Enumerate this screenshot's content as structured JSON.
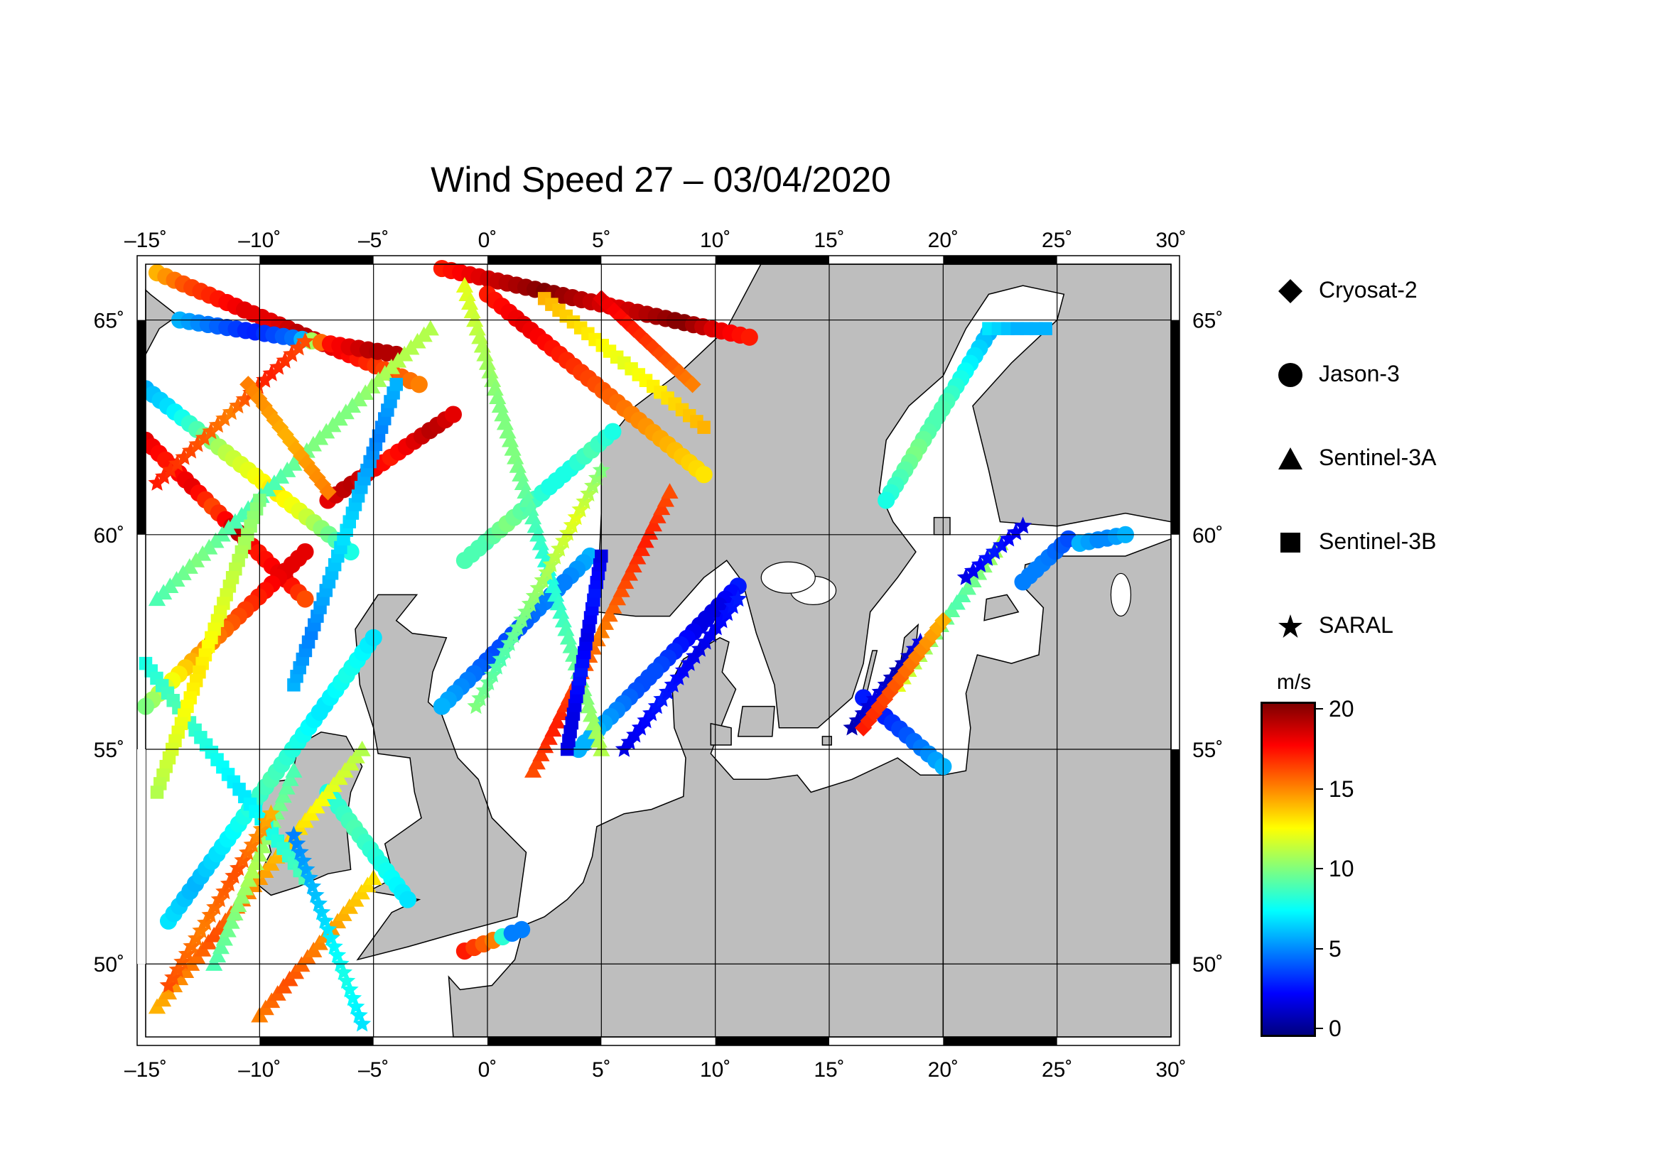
{
  "title": "Wind Speed 27 – 03/04/2020",
  "map": {
    "lon_range": [
      -15,
      30
    ],
    "lat_range": [
      48.3,
      66.3
    ],
    "lon_ticks": [
      "–15˚",
      "–10˚",
      "–5˚",
      "0˚",
      "5˚",
      "10˚",
      "15˚",
      "20˚",
      "25˚",
      "30˚"
    ],
    "lat_ticks": [
      "50˚",
      "55˚",
      "60˚",
      "65˚"
    ],
    "grid": true,
    "land_color": "#bebebe",
    "sea_color": "#ffffff",
    "frame_pattern": "alternating black/white 5-degree bands"
  },
  "legend": {
    "items": [
      {
        "label": "Cryosat-2",
        "symbol": "diamond"
      },
      {
        "label": "Jason-3",
        "symbol": "circle"
      },
      {
        "label": "Sentinel-3A",
        "symbol": "triangle"
      },
      {
        "label": "Sentinel-3B",
        "symbol": "square"
      },
      {
        "label": "SARAL",
        "symbol": "star"
      }
    ]
  },
  "colorbar": {
    "unit": "m/s",
    "min": 0,
    "max": 20,
    "ticks": [
      "20",
      "15",
      "10",
      "5",
      "0"
    ],
    "colormap": "jet",
    "colors": [
      "#00007f",
      "#0000ff",
      "#007fff",
      "#00ffff",
      "#7fff7f",
      "#ffff00",
      "#ff7f00",
      "#ff0000",
      "#7f0000"
    ]
  },
  "chart_data": {
    "type": "scatter",
    "description_units": "lon (deg E), lat (deg N), wind speed (m/s)",
    "tracks": [
      {
        "satellite": "Jason-3",
        "start": [
          -14.5,
          66.1
        ],
        "end": [
          -3.0,
          63.5
        ],
        "speeds": [
          14,
          16,
          17,
          18,
          18,
          19,
          18,
          17,
          16,
          15
        ]
      },
      {
        "satellite": "Jason-3",
        "start": [
          -2.0,
          66.2
        ],
        "end": [
          11.5,
          64.6
        ],
        "speeds": [
          17,
          18,
          19,
          20,
          19,
          18,
          19,
          20,
          18,
          17
        ]
      },
      {
        "satellite": "Jason-3",
        "start": [
          -13.5,
          65.0
        ],
        "end": [
          -4.0,
          64.2
        ],
        "speeds": [
          6,
          5,
          4,
          3,
          4,
          5,
          17,
          18,
          19,
          19
        ]
      },
      {
        "satellite": "Jason-3",
        "start": [
          -15.0,
          62.2
        ],
        "end": [
          -8.0,
          58.5
        ],
        "speeds": [
          18,
          17,
          18,
          16,
          19,
          17,
          18,
          16
        ]
      },
      {
        "satellite": "Jason-3",
        "start": [
          -7.0,
          60.8
        ],
        "end": [
          -1.5,
          62.8
        ],
        "speeds": [
          18,
          19,
          18,
          17,
          18,
          19,
          18
        ]
      },
      {
        "satellite": "Jason-3",
        "start": [
          -15.0,
          63.4
        ],
        "end": [
          -6.0,
          59.6
        ],
        "speeds": [
          6,
          7,
          9,
          11,
          12,
          13,
          12,
          10,
          8
        ]
      },
      {
        "satellite": "Jason-3",
        "start": [
          0.0,
          65.6
        ],
        "end": [
          9.5,
          61.4
        ],
        "speeds": [
          17,
          18,
          17,
          16,
          15,
          14,
          13
        ]
      },
      {
        "satellite": "Jason-3",
        "start": [
          -1.0,
          59.4
        ],
        "end": [
          5.5,
          62.4
        ],
        "speeds": [
          9,
          9,
          10,
          9,
          8,
          8,
          9,
          8
        ]
      },
      {
        "satellite": "Jason-3",
        "start": [
          -8.0,
          59.6
        ],
        "end": [
          -15.0,
          56.0
        ],
        "speeds": [
          18,
          18,
          17,
          16,
          15,
          14,
          12,
          10
        ]
      },
      {
        "satellite": "Jason-3",
        "start": [
          -14.0,
          51.0
        ],
        "end": [
          -5.0,
          57.6
        ],
        "speeds": [
          7,
          6,
          7,
          8,
          9,
          8,
          7,
          8,
          7
        ]
      },
      {
        "satellite": "Jason-3",
        "start": [
          11.0,
          58.8
        ],
        "end": [
          4.0,
          55.0
        ],
        "speeds": [
          3,
          2,
          2,
          3,
          4,
          4,
          5,
          6,
          6
        ]
      },
      {
        "satellite": "Jason-3",
        "start": [
          4.5,
          59.5
        ],
        "end": [
          -2.0,
          56.0
        ],
        "speeds": [
          6,
          5,
          5,
          4,
          4,
          5,
          6
        ]
      },
      {
        "satellite": "Jason-3",
        "start": [
          -1.0,
          50.3
        ],
        "end": [
          1.5,
          50.8
        ],
        "speeds": [
          17,
          16,
          15,
          5,
          5
        ]
      },
      {
        "satellite": "Jason-3",
        "start": [
          -7.0,
          54.0
        ],
        "end": [
          -3.5,
          51.5
        ],
        "speeds": [
          8,
          9,
          8,
          7
        ]
      },
      {
        "satellite": "Jason-3",
        "start": [
          16.5,
          56.2
        ],
        "end": [
          20.0,
          54.6
        ],
        "speeds": [
          3,
          3,
          4,
          5,
          6
        ]
      },
      {
        "satellite": "Jason-3",
        "start": [
          22.0,
          64.7
        ],
        "end": [
          17.5,
          60.8
        ],
        "speeds": [
          6,
          7,
          8,
          9,
          9,
          10,
          9,
          8
        ]
      },
      {
        "satellite": "Jason-3",
        "start": [
          23.5,
          58.9
        ],
        "end": [
          25.5,
          59.9
        ],
        "speeds": [
          5,
          5,
          4
        ]
      },
      {
        "satellite": "Jason-3",
        "start": [
          26.0,
          59.8
        ],
        "end": [
          28.0,
          60.0
        ],
        "speeds": [
          6,
          5,
          6
        ]
      },
      {
        "satellite": "Sentinel-3A",
        "start": [
          -14.5,
          49.0
        ],
        "end": [
          -5.5,
          55.0
        ],
        "speeds": [
          14,
          15,
          16,
          15,
          14,
          13,
          12,
          11
        ]
      },
      {
        "satellite": "Sentinel-3A",
        "start": [
          -10.0,
          48.8
        ],
        "end": [
          -5.0,
          52.0
        ],
        "speeds": [
          15,
          16,
          15,
          14,
          13
        ]
      },
      {
        "satellite": "Sentinel-3A",
        "start": [
          -1.0,
          65.8
        ],
        "end": [
          5.0,
          55.0
        ],
        "speeds": [
          12,
          11,
          10,
          10,
          9,
          8,
          9,
          10,
          11
        ]
      },
      {
        "satellite": "Sentinel-3A",
        "start": [
          2.0,
          54.5
        ],
        "end": [
          8.0,
          61.0
        ],
        "speeds": [
          16,
          17,
          16,
          15,
          16,
          17,
          16
        ]
      },
      {
        "satellite": "Sentinel-3A",
        "start": [
          -2.5,
          64.8
        ],
        "end": [
          -14.5,
          58.5
        ],
        "speeds": [
          11,
          11,
          10,
          10,
          9,
          9,
          10,
          9
        ]
      },
      {
        "satellite": "Sentinel-3A",
        "start": [
          18.0,
          56.5
        ],
        "end": [
          22.5,
          59.8
        ],
        "speeds": [
          12,
          11,
          10,
          9,
          10,
          11
        ]
      },
      {
        "satellite": "Sentinel-3A",
        "start": [
          -12.0,
          50.0
        ],
        "end": [
          -8.5,
          54.5
        ],
        "speeds": [
          9,
          10,
          11,
          10,
          9
        ]
      },
      {
        "satellite": "Sentinel-3B",
        "start": [
          -15.0,
          57.0
        ],
        "end": [
          -8.0,
          52.0
        ],
        "speeds": [
          8,
          9,
          8,
          7,
          8,
          9
        ]
      },
      {
        "satellite": "Sentinel-3B",
        "start": [
          3.5,
          55.0
        ],
        "end": [
          5.0,
          59.5
        ],
        "speeds": [
          2,
          2,
          3,
          2,
          3,
          2
        ]
      },
      {
        "satellite": "Sentinel-3B",
        "start": [
          2.5,
          65.5
        ],
        "end": [
          9.5,
          62.5
        ],
        "speeds": [
          14,
          13,
          12,
          13,
          14
        ]
      },
      {
        "satellite": "Sentinel-3B",
        "start": [
          -10.0,
          60.8
        ],
        "end": [
          -14.5,
          54.0
        ],
        "speeds": [
          10,
          11,
          12,
          13,
          12,
          11
        ]
      },
      {
        "satellite": "Sentinel-3B",
        "start": [
          -8.5,
          56.5
        ],
        "end": [
          -4.0,
          63.5
        ],
        "speeds": [
          6,
          5,
          6,
          7,
          6,
          5,
          6
        ]
      },
      {
        "satellite": "Sentinel-3B",
        "start": [
          22.0,
          64.8
        ],
        "end": [
          24.5,
          64.8
        ],
        "speeds": [
          7,
          6,
          6
        ]
      },
      {
        "satellite": "SARAL",
        "start": [
          -14.5,
          61.2
        ],
        "end": [
          -8.0,
          64.5
        ],
        "speeds": [
          17,
          16,
          15,
          17,
          16
        ]
      },
      {
        "satellite": "SARAL",
        "start": [
          -14.0,
          49.5
        ],
        "end": [
          -9.5,
          53.5
        ],
        "speeds": [
          16,
          15,
          16,
          14
        ]
      },
      {
        "satellite": "SARAL",
        "start": [
          -8.5,
          53.0
        ],
        "end": [
          -5.5,
          48.6
        ],
        "speeds": [
          5,
          6,
          7,
          8,
          7
        ]
      },
      {
        "satellite": "SARAL",
        "start": [
          -0.5,
          56.0
        ],
        "end": [
          5.0,
          61.5
        ],
        "speeds": [
          10,
          9,
          10,
          11,
          12,
          10
        ]
      },
      {
        "satellite": "SARAL",
        "start": [
          6.0,
          55.0
        ],
        "end": [
          11.0,
          58.5
        ],
        "speeds": [
          2,
          3,
          2,
          3
        ]
      },
      {
        "satellite": "SARAL",
        "start": [
          16.0,
          55.5
        ],
        "end": [
          19.0,
          57.5
        ],
        "speeds": [
          1,
          2,
          1,
          2
        ]
      },
      {
        "satellite": "SARAL",
        "start": [
          21.0,
          59.0
        ],
        "end": [
          23.5,
          60.2
        ],
        "speeds": [
          2,
          3,
          2
        ]
      },
      {
        "satellite": "Cryosat-2",
        "start": [
          5.0,
          65.5
        ],
        "end": [
          9.0,
          63.5
        ],
        "speeds": [
          18,
          17,
          16,
          15
        ]
      },
      {
        "satellite": "Cryosat-2",
        "start": [
          16.5,
          55.5
        ],
        "end": [
          20.0,
          58.0
        ],
        "speeds": [
          17,
          16,
          15,
          14
        ]
      },
      {
        "satellite": "Cryosat-2",
        "start": [
          -10.5,
          63.5
        ],
        "end": [
          -7.0,
          61.0
        ],
        "speeds": [
          15,
          14,
          15
        ]
      }
    ]
  }
}
